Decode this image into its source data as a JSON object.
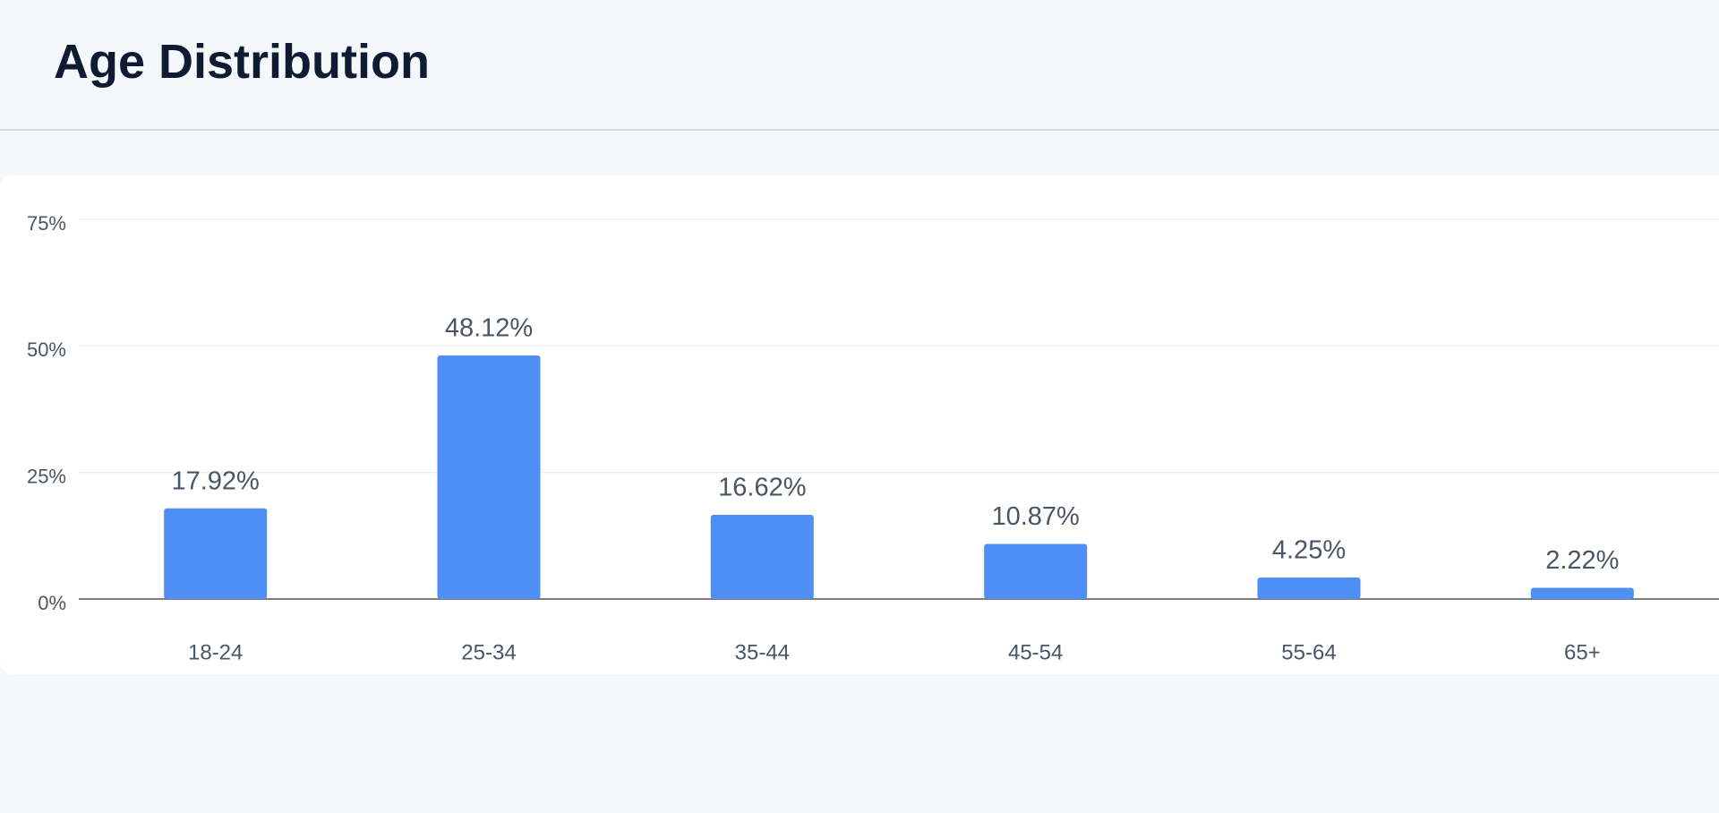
{
  "chart_data": {
    "type": "bar",
    "title": "Age Distribution",
    "categories": [
      "18-24",
      "25-34",
      "35-44",
      "45-54",
      "55-64",
      "65+"
    ],
    "values": [
      17.92,
      48.12,
      16.62,
      10.87,
      4.25,
      2.22
    ],
    "value_labels": [
      "17.92%",
      "48.12%",
      "16.62%",
      "10.87%",
      "4.25%",
      "2.22%"
    ],
    "color": "#4f8ef7",
    "ylim": [
      0,
      75
    ],
    "yticks": [
      {
        "value": 0,
        "label": "0%"
      },
      {
        "value": 25,
        "label": "25%"
      },
      {
        "value": 50,
        "label": "50%"
      },
      {
        "value": 75,
        "label": "75%"
      }
    ],
    "grid": true
  }
}
